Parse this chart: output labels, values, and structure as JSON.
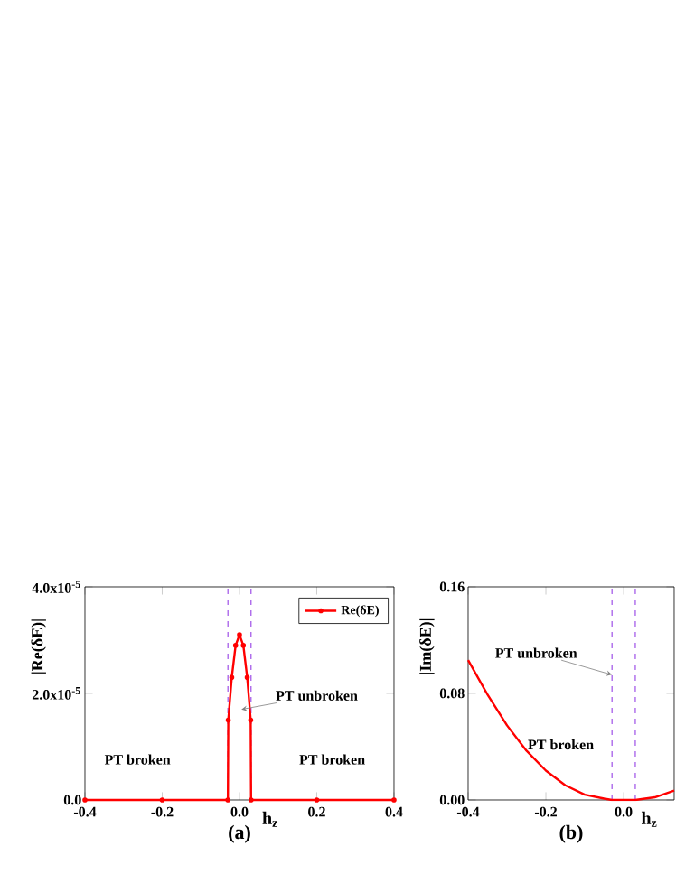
{
  "chart_data": [
    {
      "type": "line",
      "xlabel": "h$_{z}$",
      "ylabel": "|Re(δE)|",
      "legend": "top right",
      "marker": "circle",
      "line_style": "solid",
      "x": [
        -0.4,
        -0.2,
        -0.03,
        -0.029,
        -0.02,
        -0.01,
        0,
        0.01,
        0.02,
        0.029,
        0.03,
        0.2,
        0.4
      ],
      "series": [
        {
          "name": "Re(δE)",
          "color": "#ff0000",
          "values": [
            0,
            0,
            0,
            1.5e-05,
            2.3e-05,
            2.9e-05,
            3.1e-05,
            2.9e-05,
            2.3e-05,
            1.5e-05,
            0,
            0,
            0
          ]
        }
      ],
      "xlim": [
        -0.4,
        0.4
      ],
      "ylim": [
        0,
        4e-05
      ],
      "xticks": [
        -0.4,
        -0.2,
        {
          "value": 0,
          "label": "0.0"
        },
        0.2,
        0.4
      ],
      "yticks": [
        {
          "value": 0,
          "label": "0.0"
        },
        {
          "value": 2e-05,
          "label": "2.0x10$^{-5}$"
        },
        {
          "value": 4e-05,
          "label": "4.0x10$^{-5}$"
        }
      ],
      "ref_lines": [
        {
          "axis": "x",
          "value": -0.03,
          "color": "#8a2be2",
          "line_style": "dashed"
        },
        {
          "axis": "x",
          "value": 0.03,
          "color": "#8a2be2",
          "line_style": "dashed"
        }
      ],
      "annotations": [
        "PT broken",
        "PT broken",
        {
          "text": "PT unbroken",
          "x": 0.005,
          "y": 1.7e-05
        },
        "(a)"
      ]
    },
    {
      "type": "line",
      "xlabel": "h$_{z}$",
      "ylabel": "|Im(δE)|",
      "line_style": "solid",
      "x": [
        -0.4,
        -0.35,
        -0.3,
        -0.25,
        -0.2,
        -0.15,
        -0.1,
        -0.05,
        -0.03,
        0.03,
        0.08,
        0.13
      ],
      "series": [
        {
          "color": "#ff0000",
          "values": [
            0.105,
            0.079,
            0.056,
            0.037,
            0.022,
            0.011,
            0.004,
            0.001,
            0,
            0,
            0.002,
            0.007
          ]
        }
      ],
      "xlim": [
        -0.4,
        0.13
      ],
      "ylim": [
        0,
        0.16
      ],
      "xticks": [
        -0.4,
        -0.2,
        {
          "value": 0,
          "label": "0.0"
        }
      ],
      "yticks": [
        {
          "value": 0,
          "label": "0.00"
        },
        0.08,
        0.16
      ],
      "ref_lines": [
        {
          "axis": "x",
          "value": -0.03,
          "color": "#8a2be2",
          "line_style": "dashed"
        },
        {
          "axis": "x",
          "value": 0.03,
          "color": "#8a2be2",
          "line_style": "dashed"
        }
      ],
      "annotations": [
        {
          "text": "PT unbroken",
          "x": -0.03,
          "y": 0.094
        },
        "PT broken",
        "(b)"
      ]
    }
  ]
}
